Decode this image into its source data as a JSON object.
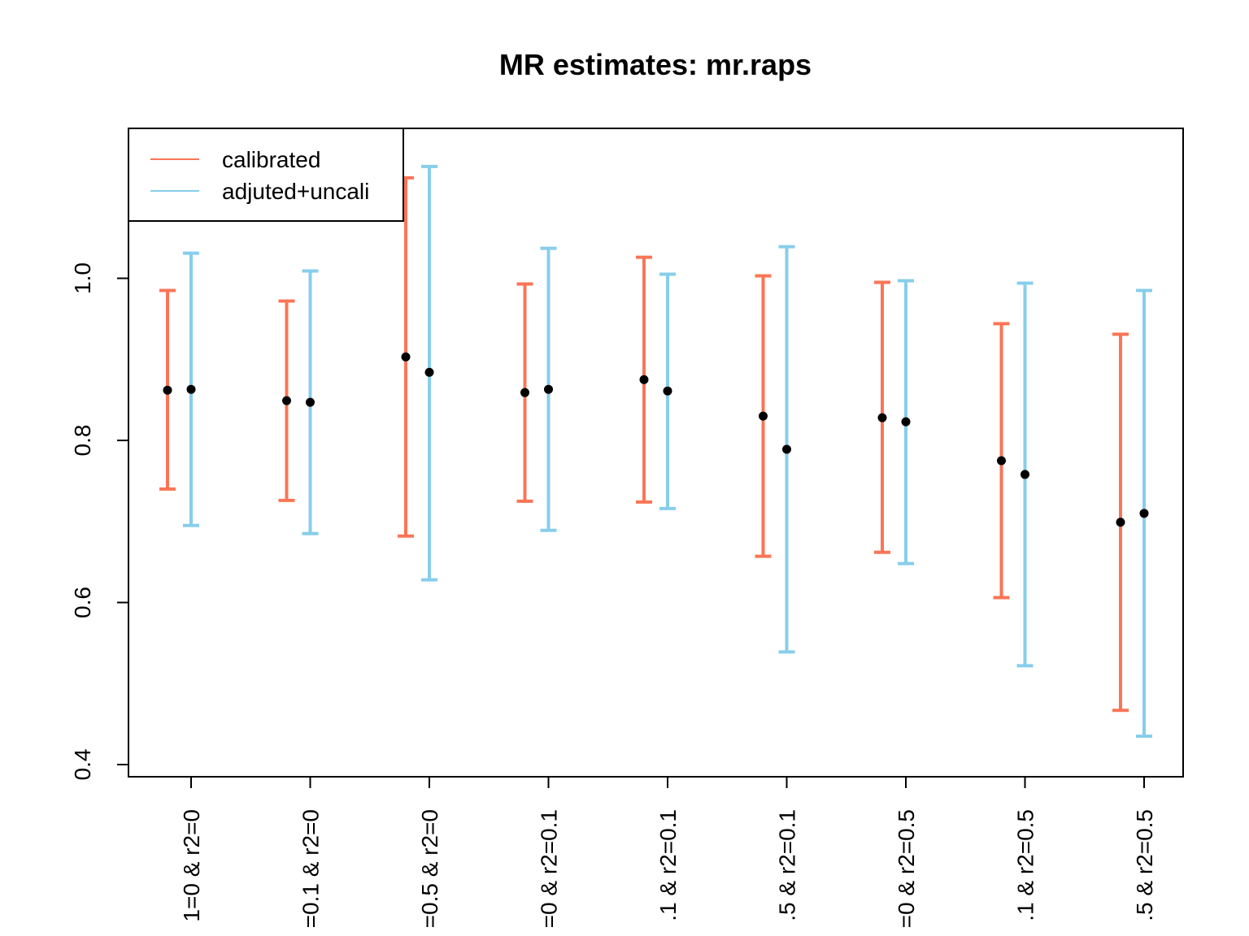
{
  "chart_data": {
    "type": "errorbar",
    "title": "MR estimates: mr.raps",
    "xlabel": "",
    "ylabel": "",
    "ylim": [
      0.385,
      1.185
    ],
    "yticks": [
      "0.4",
      "0.6",
      "0.8",
      "1.0"
    ],
    "ytick_values": [
      0.4,
      0.6,
      0.8,
      1.0
    ],
    "categories": [
      "1=0 & r2=0",
      "=0.1 & r2=0",
      "=0.5 & r2=0",
      "=0 & r2=0.1",
      ".1 & r2=0.1",
      ".5 & r2=0.1",
      "=0 & r2=0.5",
      ".1 & r2=0.5",
      ".5 & r2=0.5"
    ],
    "legend_position": "top-left",
    "series": [
      {
        "name": "calibrated",
        "color": "#FA7556",
        "points": [
          {
            "est": 0.862,
            "lo": 0.74,
            "hi": 0.985
          },
          {
            "est": 0.849,
            "lo": 0.726,
            "hi": 0.972
          },
          {
            "est": 0.903,
            "lo": 0.682,
            "hi": 1.124
          },
          {
            "est": 0.859,
            "lo": 0.725,
            "hi": 0.993
          },
          {
            "est": 0.875,
            "lo": 0.724,
            "hi": 1.026
          },
          {
            "est": 0.83,
            "lo": 0.657,
            "hi": 1.003
          },
          {
            "est": 0.828,
            "lo": 0.662,
            "hi": 0.995
          },
          {
            "est": 0.775,
            "lo": 0.606,
            "hi": 0.944
          },
          {
            "est": 0.699,
            "lo": 0.467,
            "hi": 0.931
          }
        ]
      },
      {
        "name": "adjuted+uncali",
        "color": "#87CEEB",
        "points": [
          {
            "est": 0.863,
            "lo": 0.695,
            "hi": 1.031
          },
          {
            "est": 0.847,
            "lo": 0.685,
            "hi": 1.009
          },
          {
            "est": 0.884,
            "lo": 0.628,
            "hi": 1.138
          },
          {
            "est": 0.863,
            "lo": 0.689,
            "hi": 1.037
          },
          {
            "est": 0.861,
            "lo": 0.716,
            "hi": 1.005
          },
          {
            "est": 0.789,
            "lo": 0.539,
            "hi": 1.039
          },
          {
            "est": 0.823,
            "lo": 0.648,
            "hi": 0.997
          },
          {
            "est": 0.758,
            "lo": 0.522,
            "hi": 0.994
          },
          {
            "est": 0.71,
            "lo": 0.435,
            "hi": 0.985
          }
        ]
      }
    ]
  }
}
